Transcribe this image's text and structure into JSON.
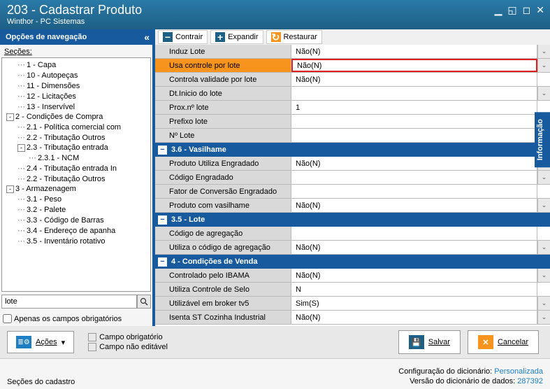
{
  "window": {
    "title": "203 - Cadastrar  Produto",
    "subtitle": "Winthor - PC Sistemas"
  },
  "nav_header": "Opções de navegação",
  "toolbar": {
    "contrair": "Contrair",
    "expandir": "Expandir",
    "restaurar": "Restaurar"
  },
  "sidebar": {
    "label": "Seções:",
    "search_value": "lote",
    "only_required": "Apenas os campos obrigatórios",
    "tree": [
      {
        "level": 2,
        "label": "1 - Capa"
      },
      {
        "level": 2,
        "label": "10 - Autopeças"
      },
      {
        "level": 2,
        "label": "11 - Dimensões"
      },
      {
        "level": 2,
        "label": "12 - Licitações"
      },
      {
        "level": 2,
        "label": "13 - Inservível"
      },
      {
        "level": 1,
        "toggle": "-",
        "label": "2 - Condições de Compra"
      },
      {
        "level": 2,
        "label": "2.1 - Política comercial com"
      },
      {
        "level": 2,
        "label": "2.2 - Tributação Outros"
      },
      {
        "level": 2,
        "toggle": "-",
        "label": "2.3 - Tributação entrada"
      },
      {
        "level": 3,
        "label": "2.3.1 - NCM"
      },
      {
        "level": 2,
        "label": "2.4 - Tributação entrada In"
      },
      {
        "level": 2,
        "label": "2.2 - Tributação Outros"
      },
      {
        "level": 1,
        "toggle": "-",
        "label": "3 - Armazenagem"
      },
      {
        "level": 2,
        "label": "3.1 - Peso"
      },
      {
        "level": 2,
        "label": "3.2 - Palete"
      },
      {
        "level": 2,
        "label": "3.3 - Código de Barras"
      },
      {
        "level": 2,
        "label": "3.4 - Endereço de apanha"
      },
      {
        "level": 2,
        "label": "3.5 - Inventário rotativo"
      }
    ]
  },
  "sections": [
    {
      "rows": [
        {
          "label": "Induz Lote",
          "value": "Não(N)",
          "dd": true,
          "indent": true
        },
        {
          "label": "Usa controle por lote",
          "value": "Não(N)",
          "dd": true,
          "indent": true,
          "highlight": true
        },
        {
          "label": "Controla validade por lote",
          "value": "Não(N)",
          "indent": true
        },
        {
          "label": "Dt.Inicio do lote",
          "value": "",
          "dd": true,
          "indent": true
        },
        {
          "label": "Prox.nº lote",
          "value": "1",
          "indent": true
        },
        {
          "label": "Prefixo lote",
          "value": "",
          "indent": true
        },
        {
          "label": "Nº Lote",
          "value": "",
          "indent": true
        }
      ]
    },
    {
      "header": "3.6 - Vasilhame",
      "rows": [
        {
          "label": "Produto Utiliza Engradado",
          "value": "Não(N)",
          "dd": true,
          "indent": true
        },
        {
          "label": "Código Engradado",
          "value": "",
          "dd": true,
          "indent": true
        },
        {
          "label": "Fator de Conversão Engradado",
          "value": "",
          "indent": true
        },
        {
          "label": "Produto com vasilhame",
          "value": "Não(N)",
          "dd": true,
          "indent": true
        }
      ]
    },
    {
      "header": "3.5 - Lote",
      "rows": [
        {
          "label": "Código de agregação",
          "value": "",
          "indent": true
        },
        {
          "label": "Utiliza o código de agregação",
          "value": "Não(N)",
          "dd": true,
          "indent": true
        }
      ]
    },
    {
      "header": "4 - Condições de Venda",
      "rows": [
        {
          "label": "Controlado pelo IBAMA",
          "value": "Não(N)",
          "dd": true,
          "indent": true
        },
        {
          "label": "Utiliza Controle de Selo",
          "value": "N",
          "indent": true
        },
        {
          "label": "Utilizável em broker tv5",
          "value": "Sim(S)",
          "dd": true,
          "indent": true
        },
        {
          "label": "Isenta ST Cozinha Industrial",
          "value": "Não(N)",
          "dd": true,
          "indent": true
        }
      ]
    }
  ],
  "info_tab": "Informação",
  "footer": {
    "acoes": "Ações",
    "legend_required": "Campo obrigatório",
    "legend_readonly": "Campo não editável",
    "salvar": "Salvar",
    "cancelar": "Cancelar"
  },
  "status": {
    "left": "Seções do cadastro",
    "dict_config": "Configuração do dicionário:",
    "dict_config_val": "Personalizada",
    "dict_version": "Versão do dicionário de dados:",
    "dict_version_val": "287392"
  }
}
